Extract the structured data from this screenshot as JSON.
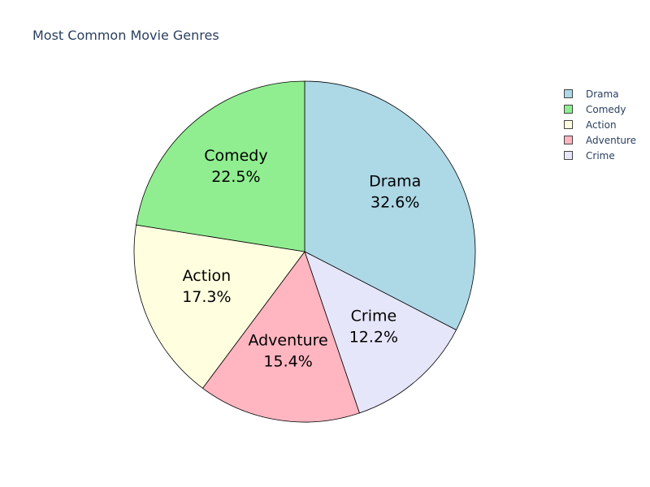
{
  "chart_data": {
    "type": "pie",
    "title": "Most Common Movie Genres",
    "slices": [
      {
        "label": "Drama",
        "value": 32.6,
        "percent_label": "32.6%",
        "color": "#add8e6"
      },
      {
        "label": "Crime",
        "value": 12.2,
        "percent_label": "12.2%",
        "color": "#e6e6fa"
      },
      {
        "label": "Adventure",
        "value": 15.4,
        "percent_label": "15.4%",
        "color": "#ffb6c1"
      },
      {
        "label": "Action",
        "value": 17.3,
        "percent_label": "17.3%",
        "color": "#ffffe0"
      },
      {
        "label": "Comedy",
        "value": 22.5,
        "percent_label": "22.5%",
        "color": "#90ee90"
      }
    ],
    "legend": {
      "placement": "top-right",
      "entries": [
        {
          "label": "Drama",
          "color": "#add8e6"
        },
        {
          "label": "Comedy",
          "color": "#90ee90"
        },
        {
          "label": "Action",
          "color": "#ffffe0"
        },
        {
          "label": "Adventure",
          "color": "#ffb6c1"
        },
        {
          "label": "Crime",
          "color": "#e6e6fa"
        }
      ]
    },
    "direction": "clockwise",
    "start": "top",
    "slice_border_color": "#000000"
  }
}
